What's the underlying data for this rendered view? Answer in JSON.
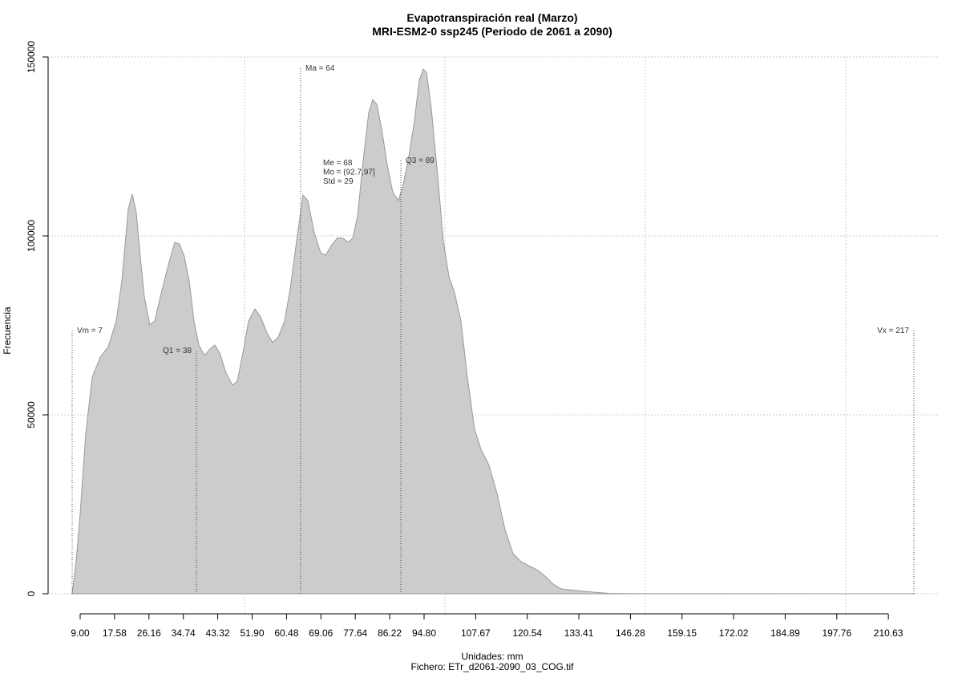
{
  "chart_data": {
    "type": "area",
    "title": "Evapotranspiración real (Marzo)",
    "subtitle": "MRI-ESM2-0 ssp245 (Periodo de 2061 a 2090)",
    "x_label": "Unidades: mm",
    "caption": "Fichero: ETr_d2061-2090_03_COG.tif",
    "y_label": "Frecuencia",
    "color": "#cccccc",
    "line_color": "#999999",
    "x": [
      7,
      8,
      9,
      10.4,
      12,
      14,
      16,
      18,
      19.4,
      21,
      22,
      23,
      24,
      25,
      26.4,
      27.6,
      29,
      31,
      32.6,
      33.8,
      35,
      36.2,
      37.4,
      38.6,
      40,
      41.4,
      42.6,
      43.8,
      45.4,
      47,
      48.2,
      49.6,
      51,
      52.6,
      54,
      55.6,
      57,
      58.4,
      60,
      61.4,
      63,
      64.6,
      65.8,
      67.4,
      69,
      70.2,
      71.8,
      73.2,
      74.6,
      76,
      77,
      78.2,
      79.6,
      81,
      82,
      83,
      84.2,
      85.6,
      87,
      88.4,
      89.6,
      91,
      92.4,
      93.6,
      94.6,
      95.4,
      96.6,
      98.2,
      99.6,
      101,
      102.4,
      104,
      105.6,
      107.4,
      109,
      111,
      113,
      115,
      117,
      119,
      121,
      123,
      125,
      127,
      129,
      133,
      137,
      141,
      149,
      217
    ],
    "values": [
      0,
      9000,
      22400,
      44800,
      60500,
      66100,
      69000,
      76200,
      87400,
      107600,
      111700,
      106500,
      94200,
      83000,
      75100,
      76200,
      83000,
      91900,
      98200,
      97700,
      94200,
      87400,
      76200,
      69500,
      66600,
      68400,
      69500,
      67300,
      61700,
      58300,
      59400,
      67300,
      76200,
      79600,
      77400,
      72900,
      70200,
      71700,
      76200,
      85200,
      98600,
      111400,
      109900,
      100900,
      95300,
      94600,
      97500,
      99500,
      99300,
      98200,
      99500,
      105400,
      121100,
      134500,
      138100,
      136800,
      130000,
      119900,
      112100,
      109900,
      114400,
      122200,
      132300,
      143500,
      146600,
      145700,
      135600,
      116600,
      98600,
      88600,
      84100,
      76200,
      60500,
      46000,
      40400,
      35900,
      28000,
      17900,
      11200,
      9000,
      7800,
      6700,
      4900,
      2700,
      1350,
      900,
      450,
      100,
      20,
      0
    ],
    "xlim": [
      1,
      223
    ],
    "ylim": [
      0,
      150000
    ],
    "xticks": [
      {
        "value": 9,
        "label": "9.00"
      },
      17.58,
      26.16,
      34.74,
      43.32,
      {
        "value": 51.9,
        "label": "51.90"
      },
      60.48,
      69.06,
      77.64,
      86.22,
      {
        "value": 94.8,
        "label": "94.80"
      },
      107.67,
      120.54,
      133.41,
      146.28,
      159.15,
      172.02,
      184.89,
      197.76,
      210.63
    ],
    "yticks": [
      0,
      50000,
      100000,
      150000
    ],
    "xgrid": [
      50,
      100,
      150,
      200
    ],
    "grid": true,
    "markers": [
      {
        "label": "Vm = 7",
        "value": 7
      },
      {
        "label": "Q1 = 38",
        "value": 38
      },
      {
        "label": "Ma = 64",
        "value": 64
      },
      {
        "label": "Q3 = 89",
        "value": 89
      },
      {
        "label": "Vx = 217",
        "value": 217
      }
    ],
    "stats_text": [
      "Me = 68",
      "Mo = (92.7,97]",
      "Std = 29"
    ]
  }
}
